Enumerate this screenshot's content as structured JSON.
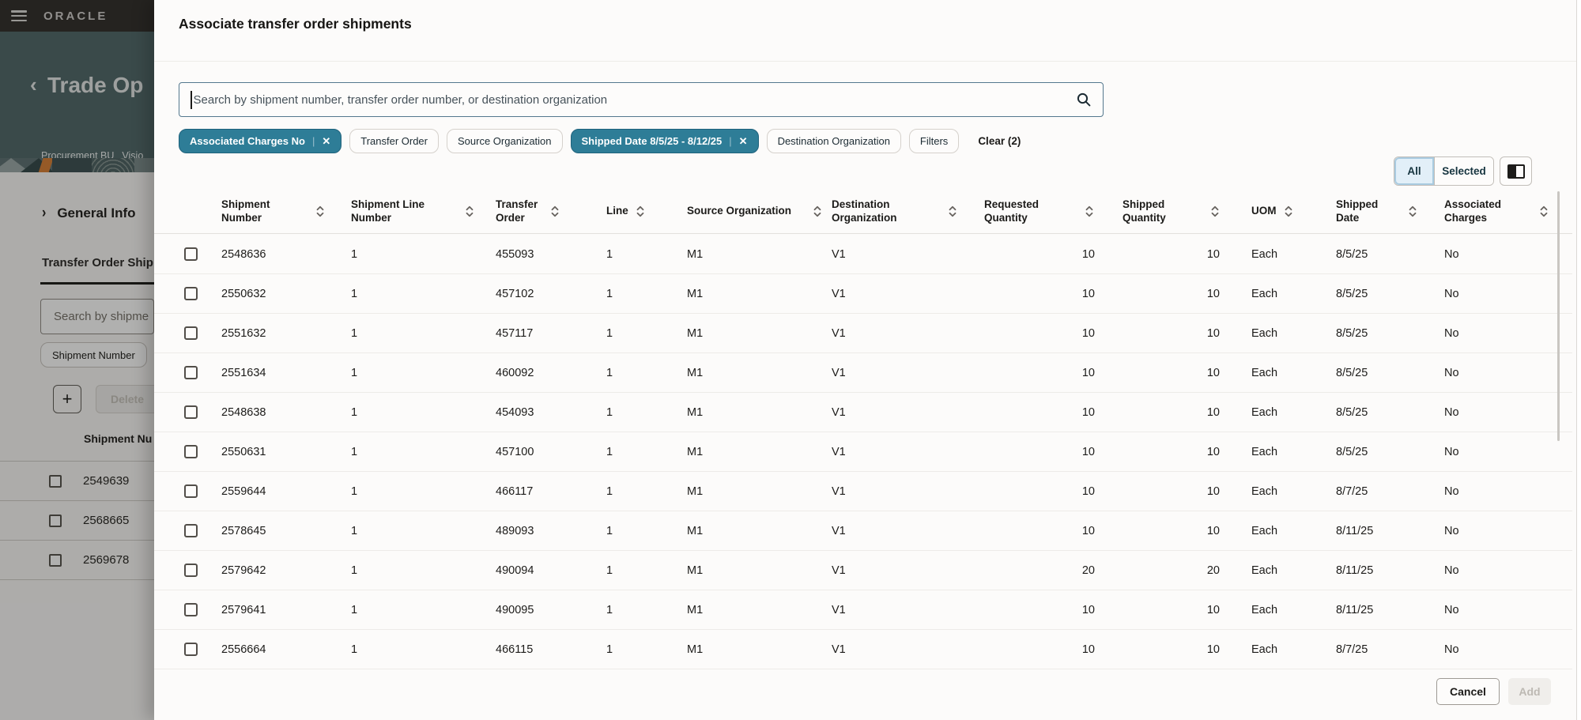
{
  "colors": {
    "topbar_bg": "#312d2a",
    "header_teal": "#506769",
    "chip_active_bg": "#2e7d97",
    "chip_active_border": "#1f627c",
    "accent_orange": "#d87f35",
    "drawer_bg": "#fcfbfa"
  },
  "icons": {
    "menu": "hamburger-bars",
    "back": "left-chevron",
    "expand": "right-chevron",
    "remove": "x-cross",
    "search": "magnifier",
    "sort": "up-down-chevrons",
    "split_view": "two-pane-rectangle",
    "add": "plus"
  },
  "background": {
    "topbar": {
      "brand": "ORACLE"
    },
    "page_header": {
      "title": "Trade Op",
      "subtitle_left": "Procurement BU",
      "subtitle_right": "Visio"
    },
    "section": {
      "heading": "General Info",
      "tab": "Transfer Order Ship"
    },
    "panel": {
      "search_placeholder": "Search by shipme",
      "chip": "Shipment Number",
      "add_label": "+",
      "delete_label": "Delete",
      "column_header": "Shipment Nu"
    },
    "rows": [
      {
        "number": "2549639"
      },
      {
        "number": "2568665"
      },
      {
        "number": "2569678"
      }
    ]
  },
  "drawer": {
    "title": "Associate transfer order shipments",
    "search": {
      "placeholder": "Search by shipment number, transfer order number, or destination organization"
    },
    "filters": {
      "chips": [
        {
          "label": "Associated Charges No",
          "active": true,
          "removable": true
        },
        {
          "label": "Transfer Order",
          "active": false,
          "removable": false
        },
        {
          "label": "Source Organization",
          "active": false,
          "removable": false
        },
        {
          "label": "Shipped Date 8/5/25 - 8/12/25",
          "active": true,
          "removable": true
        },
        {
          "label": "Destination Organization",
          "active": false,
          "removable": false
        },
        {
          "label": "Filters",
          "active": false,
          "removable": false
        }
      ],
      "clear_label": "Clear (2)"
    },
    "view_toggle": {
      "all": "All",
      "selected": "Selected"
    },
    "table": {
      "columns": [
        "Shipment Number",
        "Shipment Line Number",
        "Transfer Order",
        "Line",
        "Source Organization",
        "Destination Organization",
        "Requested Quantity",
        "Shipped Quantity",
        "UOM",
        "Shipped Date",
        "Associated Charges"
      ],
      "rows": [
        [
          "2548636",
          "1",
          "455093",
          "1",
          "M1",
          "V1",
          "10",
          "10",
          "Each",
          "8/5/25",
          "No"
        ],
        [
          "2550632",
          "1",
          "457102",
          "1",
          "M1",
          "V1",
          "10",
          "10",
          "Each",
          "8/5/25",
          "No"
        ],
        [
          "2551632",
          "1",
          "457117",
          "1",
          "M1",
          "V1",
          "10",
          "10",
          "Each",
          "8/5/25",
          "No"
        ],
        [
          "2551634",
          "1",
          "460092",
          "1",
          "M1",
          "V1",
          "10",
          "10",
          "Each",
          "8/5/25",
          "No"
        ],
        [
          "2548638",
          "1",
          "454093",
          "1",
          "M1",
          "V1",
          "10",
          "10",
          "Each",
          "8/5/25",
          "No"
        ],
        [
          "2550631",
          "1",
          "457100",
          "1",
          "M1",
          "V1",
          "10",
          "10",
          "Each",
          "8/5/25",
          "No"
        ],
        [
          "2559644",
          "1",
          "466117",
          "1",
          "M1",
          "V1",
          "10",
          "10",
          "Each",
          "8/7/25",
          "No"
        ],
        [
          "2578645",
          "1",
          "489093",
          "1",
          "M1",
          "V1",
          "10",
          "10",
          "Each",
          "8/11/25",
          "No"
        ],
        [
          "2579642",
          "1",
          "490094",
          "1",
          "M1",
          "V1",
          "20",
          "20",
          "Each",
          "8/11/25",
          "No"
        ],
        [
          "2579641",
          "1",
          "490095",
          "1",
          "M1",
          "V1",
          "10",
          "10",
          "Each",
          "8/11/25",
          "No"
        ],
        [
          "2556664",
          "1",
          "466115",
          "1",
          "M1",
          "V1",
          "10",
          "10",
          "Each",
          "8/7/25",
          "No"
        ]
      ]
    },
    "footer": {
      "cancel": "Cancel",
      "add": "Add"
    }
  }
}
